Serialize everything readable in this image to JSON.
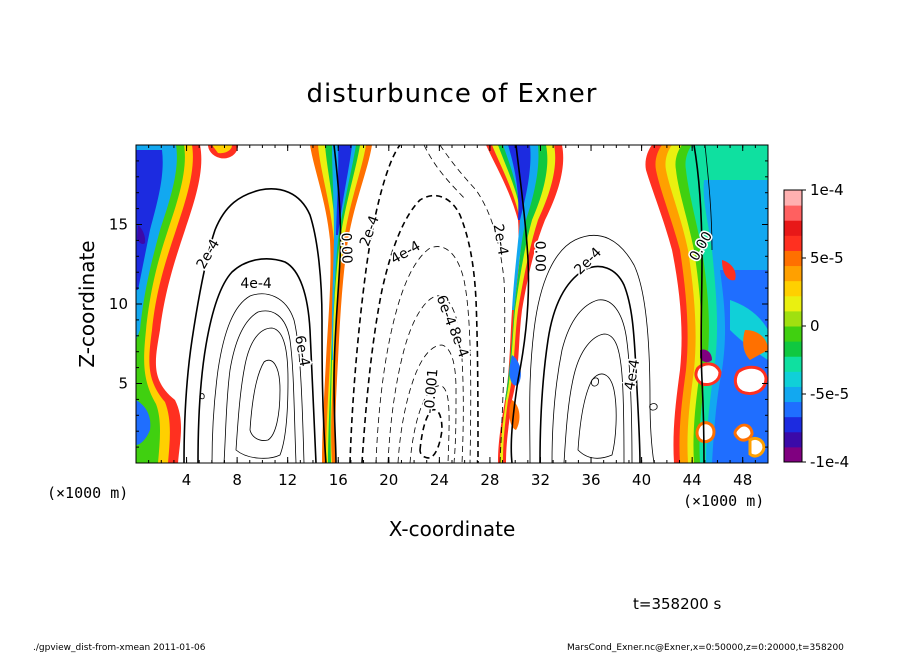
{
  "chart_data": {
    "type": "contour",
    "title": "disturbunce of Exner",
    "xlabel": "X-coordinate",
    "ylabel": "Z-coordinate",
    "x_units_note": "(×1000 m)",
    "y_units_note": "(×1000 m)",
    "xlim": [
      0,
      50
    ],
    "ylim": [
      0,
      20
    ],
    "x_ticks": [
      4,
      8,
      12,
      16,
      20,
      24,
      28,
      32,
      36,
      40,
      44,
      48
    ],
    "y_ticks": [
      5,
      10,
      15
    ],
    "contour_labels": [
      {
        "text": "2e-4",
        "x": 6.0,
        "z": 13.0,
        "rot": -60
      },
      {
        "text": "4e-4",
        "x": 9.5,
        "z": 11.0,
        "rot": 0
      },
      {
        "text": "6e-4",
        "x": 12.8,
        "z": 7.0,
        "rot": 80
      },
      {
        "text": "0.00",
        "x": 16.3,
        "z": 13.5,
        "rot": 88
      },
      {
        "text": "2e-4",
        "x": 18.8,
        "z": 14.5,
        "rot": -70
      },
      {
        "text": "4e-4",
        "x": 21.5,
        "z": 13.0,
        "rot": -30
      },
      {
        "text": "6e-4",
        "x": 24.2,
        "z": 9.5,
        "rot": 70
      },
      {
        "text": "8e-4",
        "x": 25.2,
        "z": 7.5,
        "rot": 70
      },
      {
        "text": "-0.001",
        "x": 23.7,
        "z": 4.5,
        "rot": -85
      },
      {
        "text": "2e-4",
        "x": 28.5,
        "z": 14.0,
        "rot": 80
      },
      {
        "text": "0.00",
        "x": 31.6,
        "z": 13.0,
        "rot": 90
      },
      {
        "text": "2e-4",
        "x": 36.0,
        "z": 12.5,
        "rot": -45
      },
      {
        "text": "4e-4",
        "x": 39.6,
        "z": 5.5,
        "rot": -80
      },
      {
        "text": "0.00",
        "x": 45.0,
        "z": 13.5,
        "rot": -60
      }
    ],
    "colorbar": {
      "min": -0.0001,
      "max": 0.0001,
      "tick_labels": [
        "1e-4",
        "5e-5",
        "0",
        "-5e-5",
        "-1e-4"
      ],
      "colors": [
        "#800080",
        "#3b0aa8",
        "#1c2be0",
        "#1f6eff",
        "#12a8f0",
        "#10d0d8",
        "#0fe0a0",
        "#10c840",
        "#40d010",
        "#a0e010",
        "#eaf010",
        "#ffd000",
        "#ffa000",
        "#ff7000",
        "#ff3020",
        "#e81818",
        "#ff6060",
        "#ffb0b0"
      ]
    },
    "time_label": "t=358200 s"
  },
  "footer": {
    "left": "./gpview_dist-from-xmean   2011-01-06",
    "right": "MarsCond_Exner.nc@Exner,x=0:50000,z=0:20000,t=358200"
  }
}
